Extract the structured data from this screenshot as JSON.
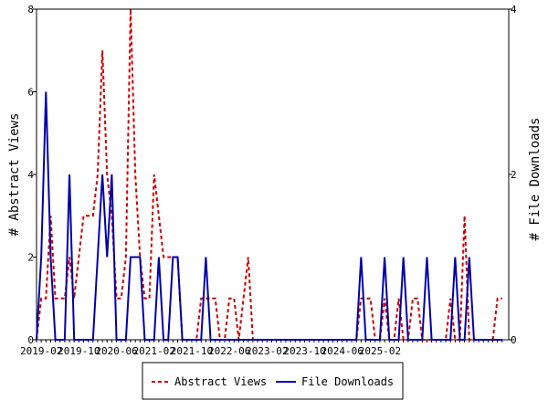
{
  "chart_data": {
    "type": "line",
    "ylabel": "# Abstract Views",
    "y2label": "# File Downloads",
    "ylim": [
      0,
      8
    ],
    "y2lim": [
      0,
      4
    ],
    "yticks": [
      0,
      2,
      4,
      6,
      8
    ],
    "y2ticks": [
      0,
      2,
      4
    ],
    "xticks": [
      "2019-02",
      "2019-10",
      "2020-06",
      "2021-02",
      "2021-10",
      "2022-06",
      "2023-02",
      "2023-10",
      "2024-06",
      "2025-02"
    ],
    "x_start": "2019-01",
    "grid": false,
    "legend_position": "bottom",
    "series": [
      {
        "name": "Abstract Views",
        "axis": "left",
        "color": "#cc0000",
        "style": "dashed",
        "values": [
          0,
          1,
          1,
          3,
          1,
          1,
          1,
          2,
          1,
          2,
          3,
          3,
          3,
          4,
          7,
          4,
          3,
          1,
          1,
          2,
          8,
          4,
          2,
          1,
          1,
          4,
          3,
          2,
          2,
          2,
          2,
          0,
          0,
          0,
          0,
          1,
          1,
          1,
          1,
          0,
          0,
          1,
          1,
          0,
          1,
          2,
          0,
          0,
          0,
          0,
          0,
          0,
          0,
          0,
          0,
          0,
          0,
          0,
          0,
          0,
          0,
          0,
          0,
          0,
          0,
          0,
          0,
          0,
          0,
          1,
          1,
          1,
          0,
          0,
          1,
          0,
          0,
          1,
          0,
          0,
          1,
          1,
          0,
          0,
          0,
          0,
          0,
          0,
          1,
          0,
          0,
          3,
          0,
          0,
          0,
          0,
          0,
          0,
          1,
          1
        ]
      },
      {
        "name": "File Downloads",
        "axis": "right",
        "color": "#0000aa",
        "style": "solid",
        "values": [
          0,
          1,
          3,
          1,
          0,
          0,
          0,
          2,
          0,
          0,
          0,
          0,
          0,
          1,
          2,
          1,
          2,
          0,
          0,
          0,
          1,
          1,
          1,
          0,
          0,
          0,
          1,
          0,
          0,
          1,
          1,
          0,
          0,
          0,
          0,
          0,
          1,
          0,
          0,
          0,
          0,
          0,
          0,
          0,
          0,
          0,
          0,
          0,
          0,
          0,
          0,
          0,
          0,
          0,
          0,
          0,
          0,
          0,
          0,
          0,
          0,
          0,
          0,
          0,
          0,
          0,
          0,
          0,
          0,
          1,
          0,
          0,
          0,
          0,
          1,
          0,
          0,
          0,
          1,
          0,
          0,
          0,
          0,
          1,
          0,
          0,
          0,
          0,
          0,
          1,
          0,
          0,
          1,
          0,
          0,
          0,
          0,
          0,
          0,
          0
        ]
      }
    ]
  }
}
